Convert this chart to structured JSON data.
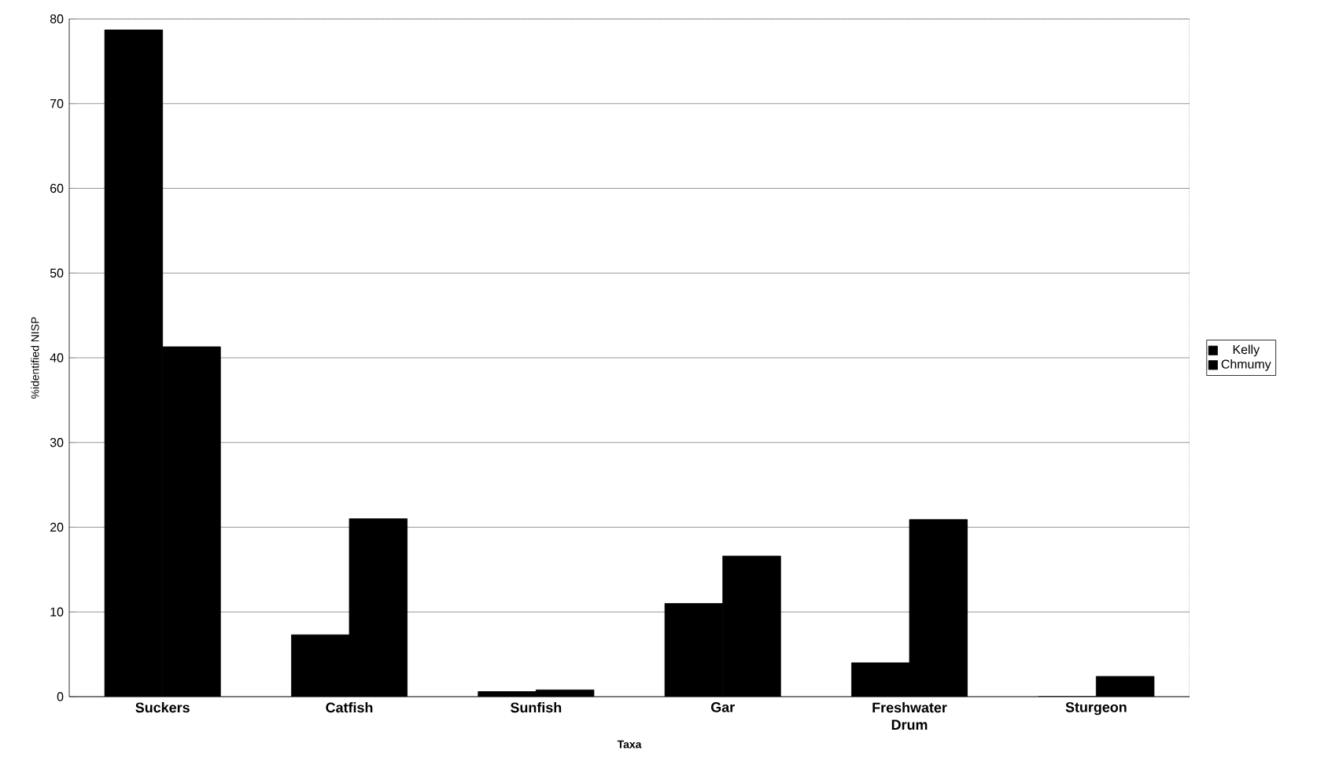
{
  "chart_data": {
    "type": "bar",
    "xlabel": "Taxa",
    "ylabel": "%identified NISP",
    "categories": [
      "Suckers",
      "Catfish",
      "Sunfish",
      "Gar",
      "Freshwater Drum",
      "Sturgeon"
    ],
    "series": [
      {
        "name": "Kelly",
        "color": "#000000",
        "values": [
          78.7,
          7.3,
          0.6,
          11,
          4,
          0
        ]
      },
      {
        "name": "Chmumy",
        "color": "#000000",
        "values": [
          41.3,
          21,
          0.8,
          16.6,
          20.9,
          2.4
        ]
      }
    ],
    "ylim": [
      0,
      80
    ],
    "yticks": [
      0,
      10,
      20,
      30,
      40,
      50,
      60,
      70,
      80
    ],
    "grid": "y",
    "legend": "right"
  }
}
